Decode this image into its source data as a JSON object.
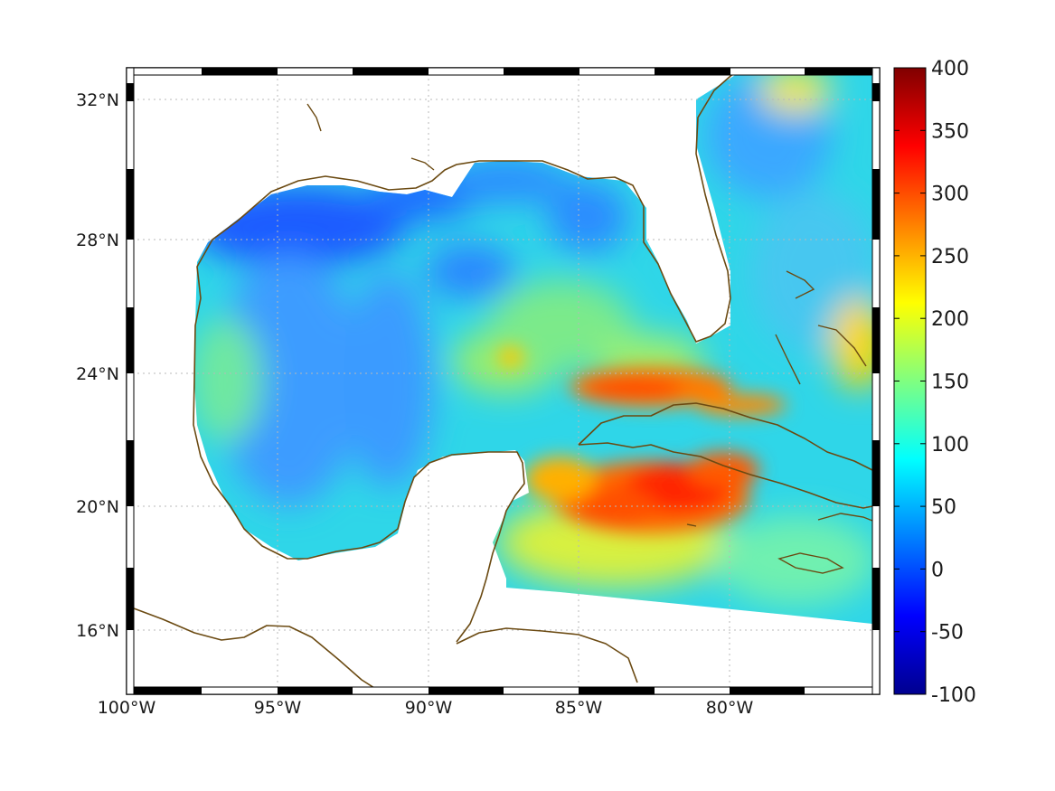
{
  "map": {
    "lon_ticks": [
      "100°W",
      "95°W",
      "90°W",
      "85°W",
      "80°W"
    ],
    "lat_ticks": [
      "32°N",
      "28°N",
      "24°N",
      "20°N",
      "16°N"
    ]
  },
  "colorbar": {
    "ticks": [
      "400",
      "350",
      "300",
      "250",
      "200",
      "150",
      "100",
      "50",
      "0",
      "-50",
      "-100"
    ],
    "min": -100,
    "max": 400,
    "colormap": "jet",
    "colors": [
      "#00008f",
      "#0000ff",
      "#0080ff",
      "#00ffff",
      "#80ff80",
      "#ffff00",
      "#ff8000",
      "#ff0000",
      "#800000"
    ]
  },
  "chart_data": {
    "type": "heatmap",
    "x_range": [
      "100°W",
      "75°W"
    ],
    "y_range": [
      "14°N",
      "33°N"
    ],
    "value_range": [
      -100,
      400
    ],
    "features": [
      {
        "region": "northwest Gulf of Mexico shelf",
        "approx_value": 20
      },
      {
        "region": "central Gulf of Mexico",
        "approx_value": 90
      },
      {
        "region": "Yucatan Channel / Caribbean south of Cuba",
        "approx_value": 300
      },
      {
        "region": "Florida Straits north of Cuba",
        "approx_value": 290
      },
      {
        "region": "Atlantic east of Florida",
        "approx_value": 80
      }
    ]
  }
}
